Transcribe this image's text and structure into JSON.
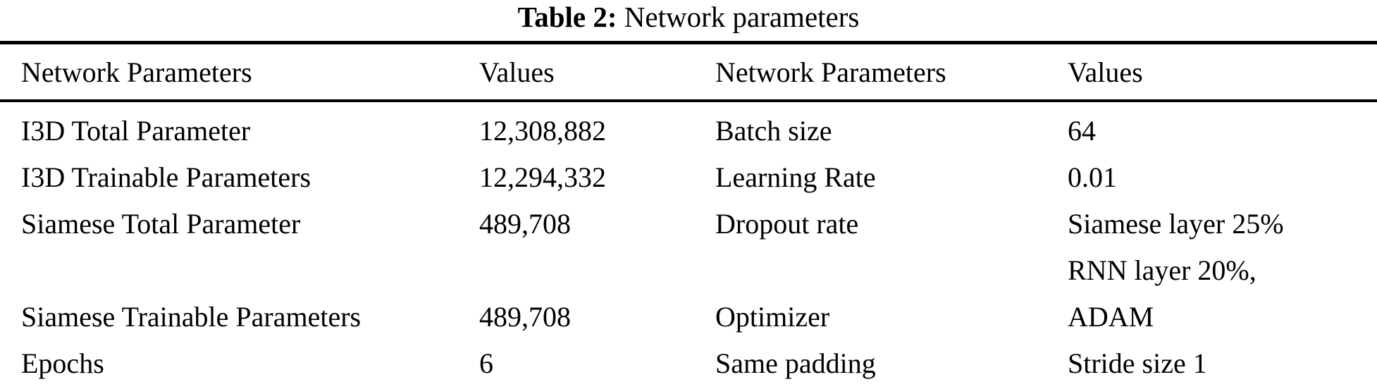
{
  "caption": {
    "label": "Table 2:",
    "text": " Network parameters"
  },
  "table": {
    "headers": [
      "Network Parameters",
      "Values",
      "Network Parameters",
      "Values"
    ],
    "rows": [
      [
        "I3D Total Parameter",
        "12,308,882",
        "Batch size",
        "64"
      ],
      [
        "I3D Trainable Parameters",
        "12,294,332",
        "Learning Rate",
        "0.01"
      ],
      [
        "Siamese Total Parameter",
        "489,708",
        "Dropout rate",
        "Siamese layer 25%\nRNN layer 20%,"
      ],
      [
        "Siamese Trainable Parameters",
        "489,708",
        "Optimizer",
        "ADAM"
      ],
      [
        "Epochs",
        "6",
        "Same padding",
        "Stride size 1"
      ]
    ]
  }
}
